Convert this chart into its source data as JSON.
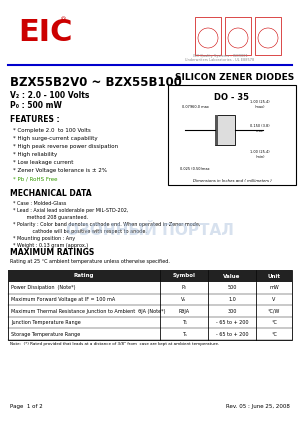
{
  "title_part": "BZX55B2V0 ~ BZX55B100",
  "title_right": "SILICON ZENER DIODES",
  "package": "DO - 35",
  "vz_range": "V₂ : 2.0 - 100 Volts",
  "pd": "P₀ : 500 mW",
  "features_title": "FEATURES :",
  "features": [
    "Complete 2.0  to 100 Volts",
    "High surge-current capability",
    "High peak reverse power dissipation",
    "High reliability",
    "Low leakage current",
    "Zener Voltage tolerance is ± 2%",
    "Pb / RoHS Free"
  ],
  "mech_title": "MECHANICAL DATA",
  "mech_items": [
    "Case : Molded-Glass",
    "Lead : Axial lead solderable per MIL-STD-202,\n       method 208 guaranteed.",
    "Polarity : Color band denotes cathode end. When operated in Zener mode,\n            cathode will be positive with respect to anode.",
    "Mounting position : Any",
    "Weight : 0.13 gram (approx.)"
  ],
  "max_ratings_title": "MAXIMUM RATINGS",
  "max_ratings_subtitle": "Rating at 25 °C ambient temperature unless otherwise specified.",
  "table_headers": [
    "Rating",
    "Symbol",
    "Value",
    "Unit"
  ],
  "table_rows": [
    [
      "Power Dissipation  (Note*)",
      "P₀",
      "500",
      "mW"
    ],
    [
      "Maximum Forward Voltage at IF = 100 mA",
      "Vₒ",
      "1.0",
      "V"
    ],
    [
      "Maximum Thermal Resistance Junction to Ambient  θJA (Note*)",
      "RθJA",
      "300",
      "°C/W"
    ],
    [
      "Junction Temperature Range",
      "T₁",
      "- 65 to + 200",
      "°C"
    ],
    [
      "Storage Temperature Range",
      "Tₛ",
      "- 65 to + 200",
      "°C"
    ]
  ],
  "note_text": "Note:  (*) Rated provided that leads at a distance of 3/8\" from  case are kept at ambient temperature.",
  "page_left": "Page  1 of 2",
  "page_right": "Rev. 05 : June 25, 2008",
  "eic_color": "#cc0000",
  "blue_line_color": "#0000cc",
  "header_blue": "#003399",
  "bg_color": "#ffffff",
  "watermark_color": "#b0c4de",
  "green_text_color": "#339900"
}
